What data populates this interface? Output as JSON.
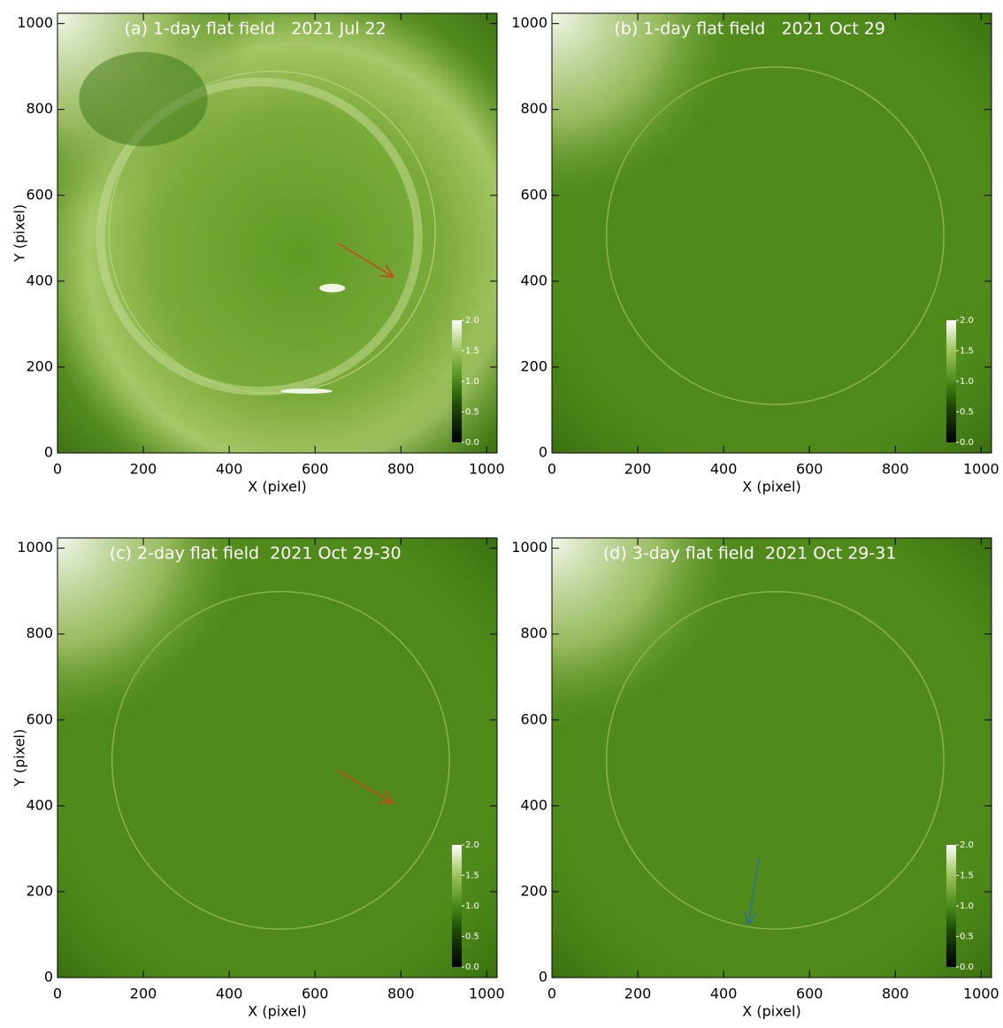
{
  "chart_data": [
    {
      "type": "image",
      "title": "(a) 1-day flat field   2021 Jul 22",
      "xlabel": "X (pixel)",
      "ylabel": "Y (pixel)",
      "xlim": [
        0,
        1024
      ],
      "ylim": [
        0,
        1024
      ],
      "xticks": [
        0,
        200,
        400,
        600,
        800,
        1000
      ],
      "yticks": [
        0,
        200,
        400,
        600,
        800,
        1000
      ],
      "cblim": [
        0,
        2
      ],
      "cbticks": [
        {
          "value": 0,
          "label": "0.0"
        },
        {
          "value": 0.5,
          "label": "0.5"
        },
        {
          "value": 1,
          "label": "1.0"
        },
        {
          "value": 1.5,
          "label": "1.5"
        },
        {
          "value": 2,
          "label": "2.0"
        }
      ]
    },
    {
      "type": "image",
      "title": "(b) 1-day flat field   2021 Oct 29",
      "xlabel": "X (pixel)",
      "xlim": [
        0,
        1024
      ],
      "ylim": [
        0,
        1024
      ],
      "xticks": [
        0,
        200,
        400,
        600,
        800,
        1000
      ],
      "yticks": [
        0,
        200,
        400,
        600,
        800,
        1000
      ],
      "cblim": [
        0,
        2
      ],
      "cbticks": [
        {
          "value": 0,
          "label": "0.0"
        },
        {
          "value": 0.5,
          "label": "0.5"
        },
        {
          "value": 1,
          "label": "1.0"
        },
        {
          "value": 1.5,
          "label": "1.5"
        },
        {
          "value": 2,
          "label": "2.0"
        }
      ]
    },
    {
      "type": "image",
      "title": "(c) 2-day flat field  2021 Oct 29-30",
      "xlabel": "X (pixel)",
      "ylabel": "Y (pixel)",
      "xlim": [
        0,
        1024
      ],
      "ylim": [
        0,
        1024
      ],
      "xticks": [
        0,
        200,
        400,
        600,
        800,
        1000
      ],
      "yticks": [
        0,
        200,
        400,
        600,
        800,
        1000
      ],
      "cblim": [
        0,
        2
      ],
      "cbticks": [
        {
          "value": 0,
          "label": "0.0"
        },
        {
          "value": 0.5,
          "label": "0.5"
        },
        {
          "value": 1,
          "label": "1.0"
        },
        {
          "value": 1.5,
          "label": "1.5"
        },
        {
          "value": 2,
          "label": "2.0"
        }
      ]
    },
    {
      "type": "image",
      "title": "(d) 3-day flat field  2021 Oct 29-31",
      "xlabel": "X (pixel)",
      "xlim": [
        0,
        1024
      ],
      "ylim": [
        0,
        1024
      ],
      "xticks": [
        0,
        200,
        400,
        600,
        800,
        1000
      ],
      "yticks": [
        0,
        200,
        400,
        600,
        800,
        1000
      ],
      "cblim": [
        0,
        2
      ],
      "cbticks": [
        {
          "value": 0,
          "label": "0.0"
        },
        {
          "value": 0.5,
          "label": "0.5"
        },
        {
          "value": 1,
          "label": "1.0"
        },
        {
          "value": 1.5,
          "label": "1.5"
        },
        {
          "value": 2,
          "label": "2.0"
        }
      ]
    }
  ]
}
